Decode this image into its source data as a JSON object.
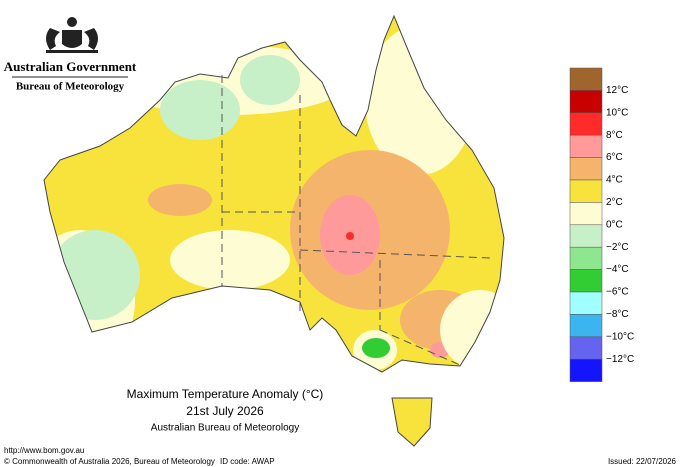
{
  "header": {
    "government": "Australian Government",
    "agency": "Bureau of Meteorology"
  },
  "map": {
    "title": "Maximum Temperature Anomaly (°C)",
    "date": "21st July 2026",
    "source": "Australian Bureau of Meteorology"
  },
  "legend": {
    "colors": [
      "#a0642d",
      "#c80000",
      "#ff2b2b",
      "#ff9a9a",
      "#f5b46c",
      "#f7e33c",
      "#fdfcd2",
      "#c8f0c8",
      "#8ee68e",
      "#32cd32",
      "#a0ffff",
      "#3cb4f0",
      "#6464f0",
      "#1414ff"
    ],
    "labels": [
      "12°C",
      "10°C",
      "8°C",
      "6°C",
      "4°C",
      "2°C",
      "0°C",
      "−2°C",
      "−4°C",
      "−6°C",
      "−8°C",
      "−10°C",
      "−12°C"
    ]
  },
  "footer": {
    "url": "http://www.bom.gov.au",
    "copyright": "© Commonwealth of Australia 2026, Bureau of Meteorology",
    "id_code": "ID code: AWAP",
    "issued": "Issued: 22/07/2026"
  }
}
